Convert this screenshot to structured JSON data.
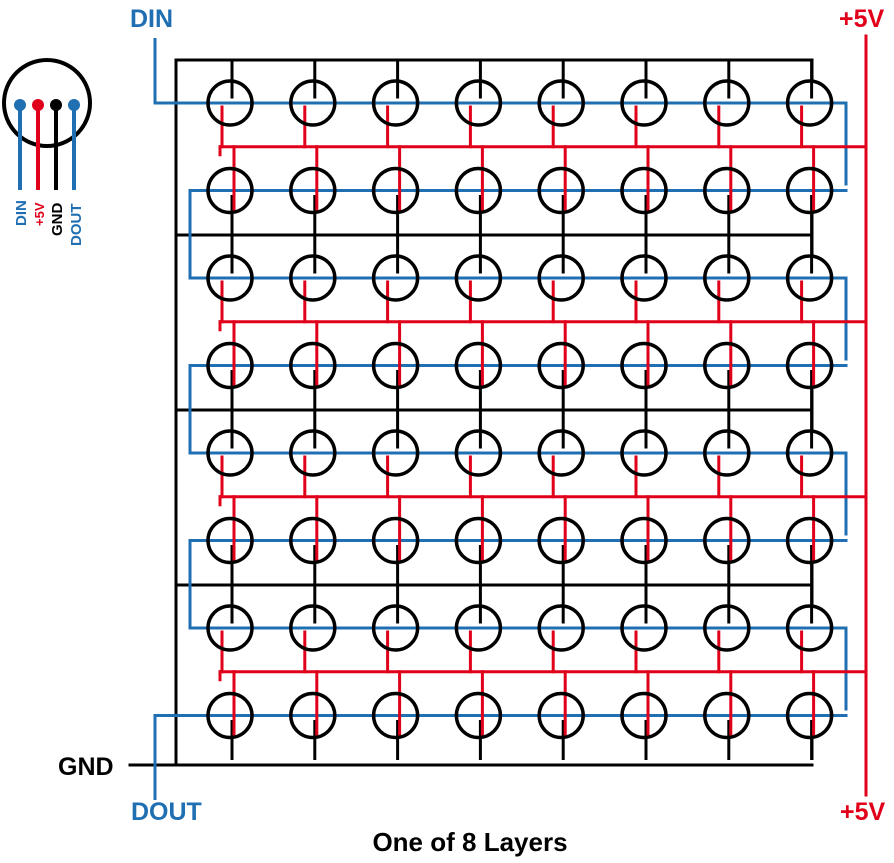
{
  "labels": {
    "din": "DIN",
    "dout": "DOUT",
    "gnd": "GND",
    "vcc_top": "+5V",
    "vcc_bottom": "+5V",
    "caption": "One of 8 Layers"
  },
  "pinout": {
    "pins": [
      "DIN",
      "+5V",
      "GND",
      "DOUT"
    ]
  },
  "grid": {
    "rows": 8,
    "cols": 8
  },
  "colors": {
    "data": "#1f6fb2",
    "power": "#e1001a",
    "ground": "#000000"
  }
}
